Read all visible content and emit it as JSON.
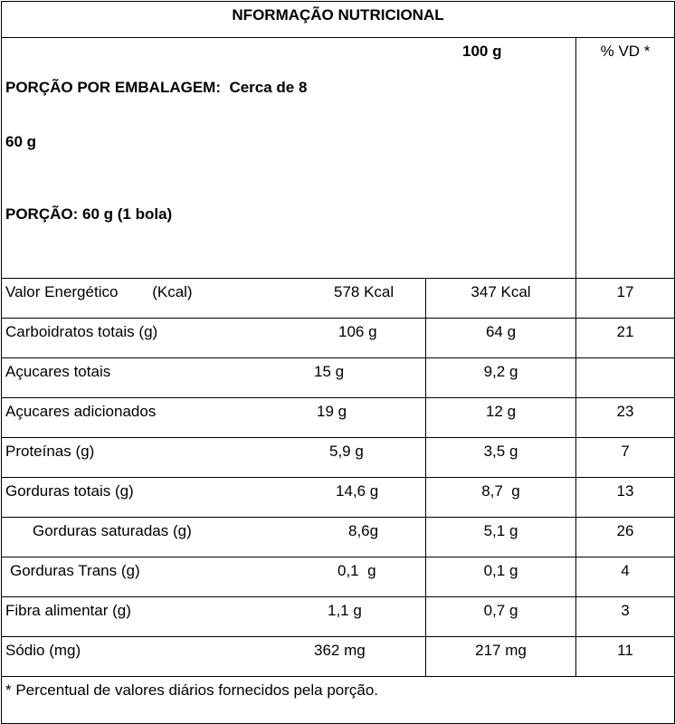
{
  "header": {
    "title": "NFORMAÇÃO NUTRICIONAL",
    "portion_line": "PORÇÃO POR EMBALAGEM:  Cerca de 8",
    "portion_weight": "60 g",
    "portion": "PORÇÃO: 60 g (1 bola)",
    "col_100g": "100 g",
    "col_vd": "% VD *"
  },
  "table": {
    "rows": [
      [
        "Valor Energético        (Kcal)",
        "578 Kcal",
        "347 Kcal",
        "17"
      ],
      [
        "Carboidratos totais (g)",
        "106 g",
        "64 g",
        "21"
      ],
      [
        "Açucares totais",
        "15 g",
        "9,2 g",
        null
      ],
      [
        "Açucares adicionados",
        "19 g",
        "12 g",
        "23"
      ],
      [
        "Proteínas (g)",
        "5,9 g",
        "3,5 g",
        "7"
      ],
      [
        "Gorduras totais (g)",
        "14,6 g",
        "8,7  g",
        "13"
      ],
      [
        "Gorduras saturadas (g)",
        "8,6g",
        "5,1 g",
        "26"
      ],
      [
        "Gorduras Trans (g)",
        "0,1  g",
        "0,1 g",
        "4"
      ],
      [
        "Fibra alimentar (g)",
        "1,1 g",
        "0,7 g",
        "3"
      ],
      [
        "Sódio (mg)",
        "362 mg",
        "217 mg",
        "11"
      ]
    ]
  },
  "footnote": "* Percentual de valores diários fornecidos pela porção."
}
